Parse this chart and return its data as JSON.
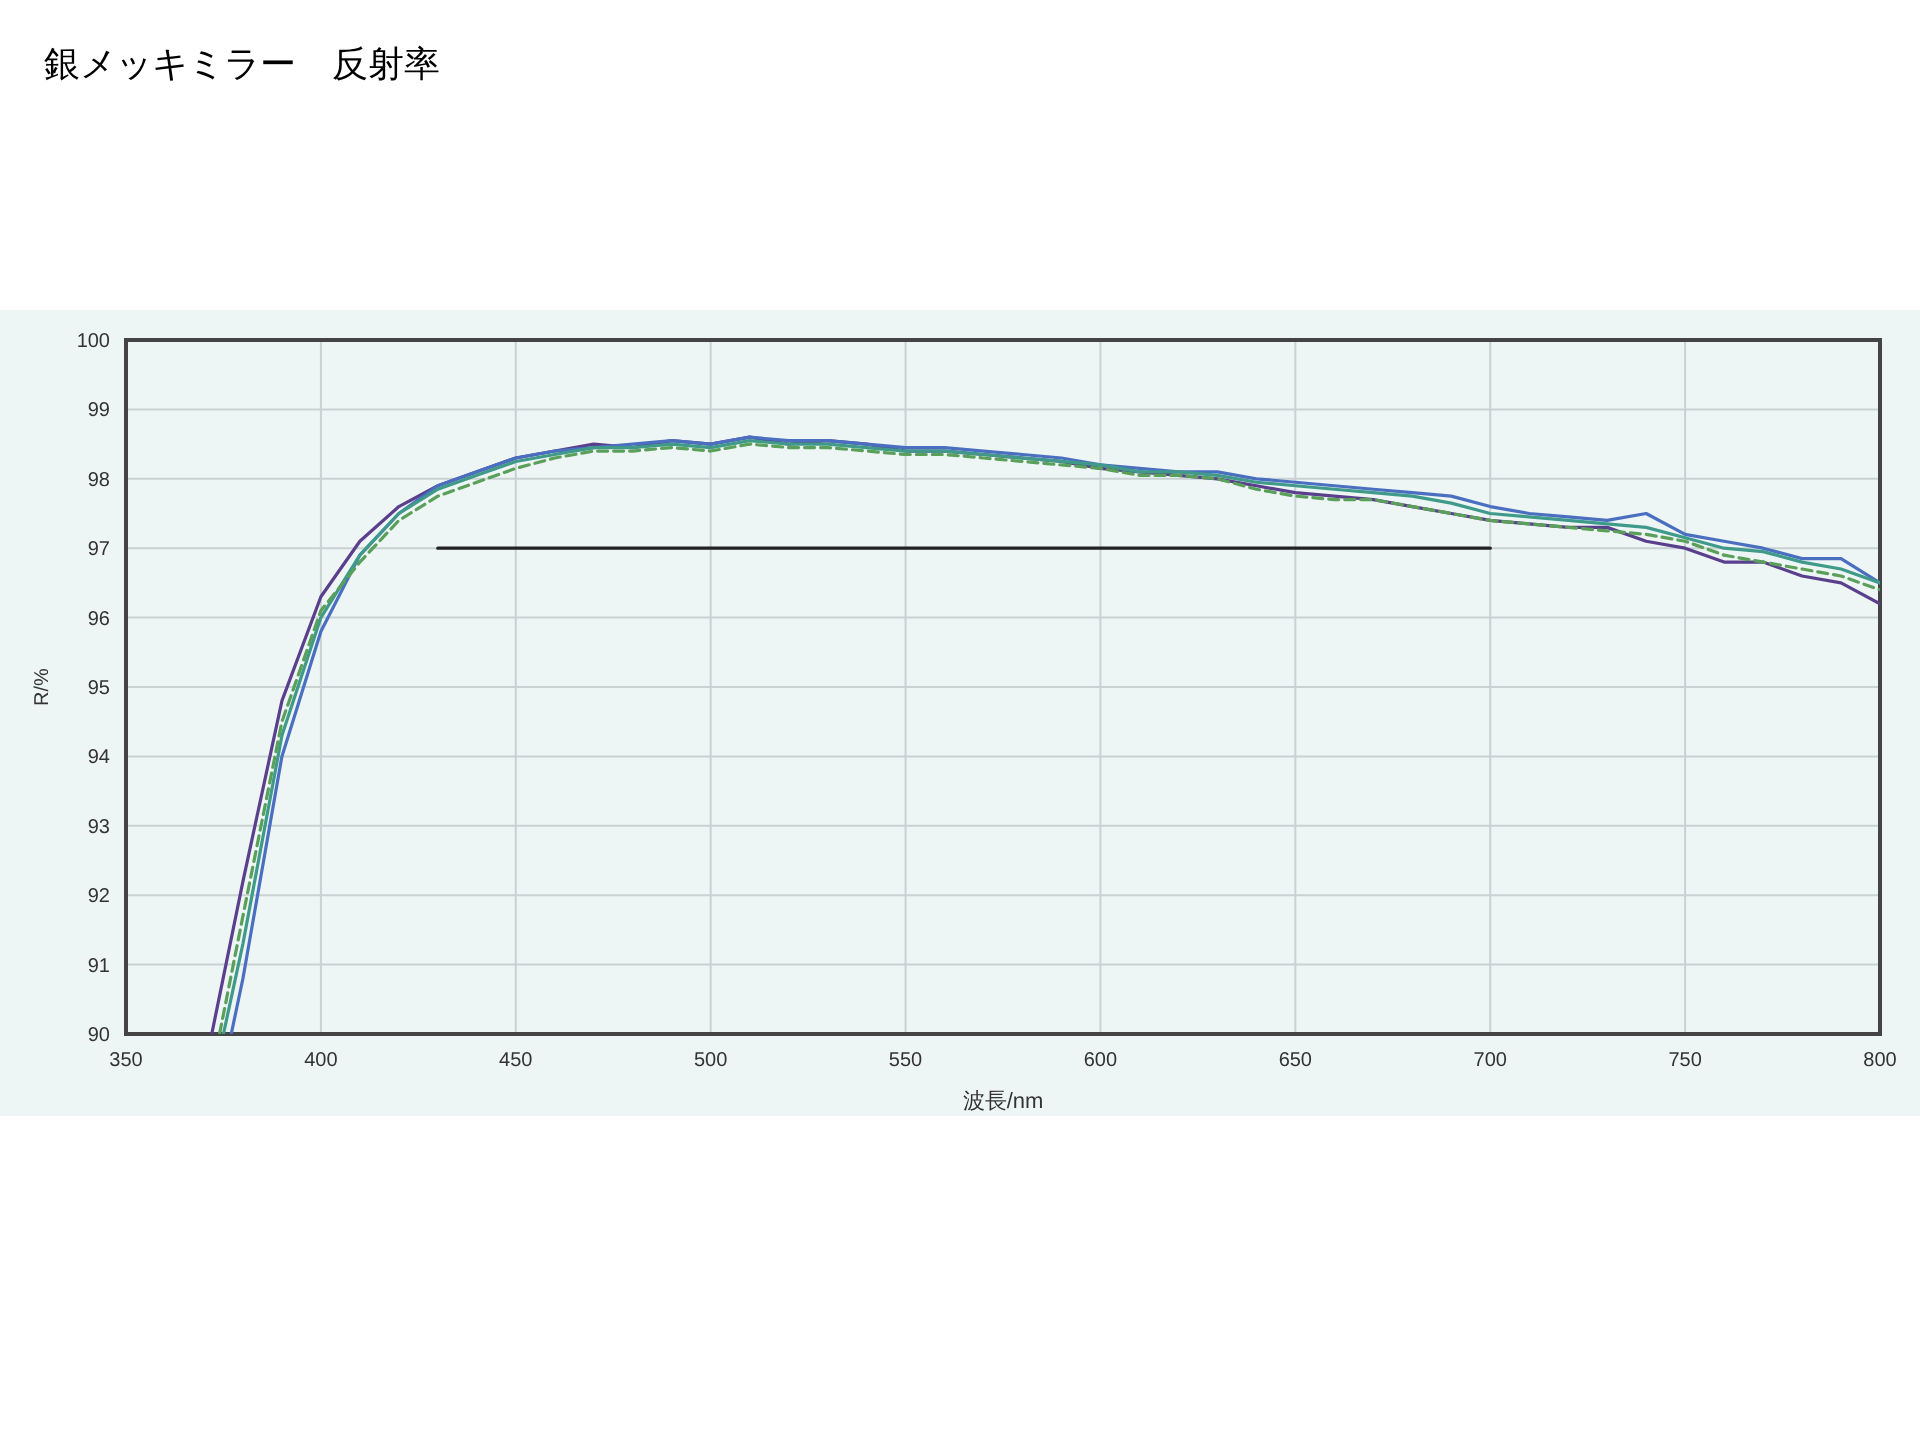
{
  "chart_data": {
    "type": "line",
    "title": "銀メッキミラー　反射率",
    "xlabel": "波長/nm",
    "ylabel": "R/%",
    "xlim": [
      350,
      800
    ],
    "ylim": [
      90,
      100
    ],
    "xticks": [
      350,
      400,
      450,
      500,
      550,
      600,
      650,
      700,
      750,
      800
    ],
    "yticks": [
      90,
      91,
      92,
      93,
      94,
      95,
      96,
      97,
      98,
      99,
      100
    ],
    "grid": true,
    "series": [
      {
        "color": "#5a3f8c",
        "line_style": "solid",
        "x": [
          372,
          380,
          390,
          400,
          410,
          420,
          430,
          440,
          450,
          460,
          470,
          480,
          490,
          500,
          510,
          520,
          530,
          540,
          550,
          560,
          570,
          580,
          590,
          600,
          610,
          620,
          630,
          640,
          650,
          660,
          670,
          680,
          690,
          700,
          710,
          720,
          730,
          740,
          750,
          760,
          770,
          780,
          790,
          800
        ],
        "values": [
          90,
          92.2,
          94.8,
          96.3,
          97.1,
          97.6,
          97.9,
          98.1,
          98.3,
          98.4,
          98.5,
          98.45,
          98.55,
          98.5,
          98.6,
          98.5,
          98.55,
          98.5,
          98.4,
          98.4,
          98.35,
          98.3,
          98.25,
          98.15,
          98.1,
          98.05,
          98.0,
          97.9,
          97.8,
          97.75,
          97.7,
          97.6,
          97.5,
          97.4,
          97.35,
          97.3,
          97.3,
          97.1,
          97.0,
          96.8,
          96.8,
          96.6,
          96.5,
          96.2
        ]
      },
      {
        "color": "#4a6fc0",
        "line_style": "solid",
        "x": [
          377,
          380,
          390,
          400,
          410,
          420,
          430,
          440,
          450,
          460,
          470,
          480,
          490,
          500,
          510,
          520,
          530,
          540,
          550,
          560,
          570,
          580,
          590,
          600,
          610,
          620,
          630,
          640,
          650,
          660,
          670,
          680,
          690,
          700,
          710,
          720,
          730,
          740,
          750,
          760,
          770,
          780,
          790,
          800
        ],
        "values": [
          90,
          90.8,
          94.0,
          95.8,
          96.9,
          97.5,
          97.9,
          98.1,
          98.3,
          98.4,
          98.45,
          98.5,
          98.55,
          98.5,
          98.6,
          98.55,
          98.55,
          98.5,
          98.45,
          98.45,
          98.4,
          98.35,
          98.3,
          98.2,
          98.15,
          98.1,
          98.1,
          98.0,
          97.95,
          97.9,
          97.85,
          97.8,
          97.75,
          97.6,
          97.5,
          97.45,
          97.4,
          97.5,
          97.2,
          97.1,
          97.0,
          96.85,
          96.85,
          96.5
        ]
      },
      {
        "color": "#3f9a8a",
        "line_style": "solid",
        "x": [
          375,
          380,
          390,
          400,
          410,
          420,
          430,
          440,
          450,
          460,
          470,
          480,
          490,
          500,
          510,
          520,
          530,
          540,
          550,
          560,
          570,
          580,
          590,
          600,
          610,
          620,
          630,
          640,
          650,
          660,
          670,
          680,
          690,
          700,
          710,
          720,
          730,
          740,
          750,
          760,
          770,
          780,
          790,
          800
        ],
        "values": [
          90,
          91.3,
          94.3,
          96.0,
          96.9,
          97.5,
          97.85,
          98.05,
          98.25,
          98.35,
          98.45,
          98.45,
          98.5,
          98.45,
          98.55,
          98.5,
          98.5,
          98.45,
          98.4,
          98.4,
          98.35,
          98.3,
          98.25,
          98.2,
          98.1,
          98.1,
          98.05,
          97.95,
          97.9,
          97.85,
          97.8,
          97.75,
          97.65,
          97.5,
          97.45,
          97.4,
          97.35,
          97.3,
          97.15,
          97.0,
          96.95,
          96.8,
          96.7,
          96.5
        ]
      },
      {
        "color": "#5aa05a",
        "line_style": "dashed",
        "x": [
          374,
          380,
          390,
          400,
          410,
          420,
          430,
          440,
          450,
          460,
          470,
          480,
          490,
          500,
          510,
          520,
          530,
          540,
          550,
          560,
          570,
          580,
          590,
          600,
          610,
          620,
          630,
          640,
          650,
          660,
          670,
          680,
          690,
          700,
          710,
          720,
          730,
          740,
          750,
          760,
          770,
          780,
          790,
          800
        ],
        "values": [
          90,
          91.7,
          94.5,
          96.1,
          96.8,
          97.4,
          97.75,
          97.95,
          98.15,
          98.3,
          98.4,
          98.4,
          98.45,
          98.4,
          98.5,
          98.45,
          98.45,
          98.4,
          98.35,
          98.35,
          98.3,
          98.25,
          98.2,
          98.15,
          98.05,
          98.05,
          98.0,
          97.85,
          97.75,
          97.7,
          97.7,
          97.6,
          97.5,
          97.4,
          97.35,
          97.3,
          97.25,
          97.2,
          97.1,
          96.9,
          96.8,
          96.7,
          96.6,
          96.4
        ]
      },
      {
        "color": "#222222",
        "line_style": "solid",
        "x": [
          430,
          700
        ],
        "values": [
          97,
          97
        ]
      }
    ]
  }
}
